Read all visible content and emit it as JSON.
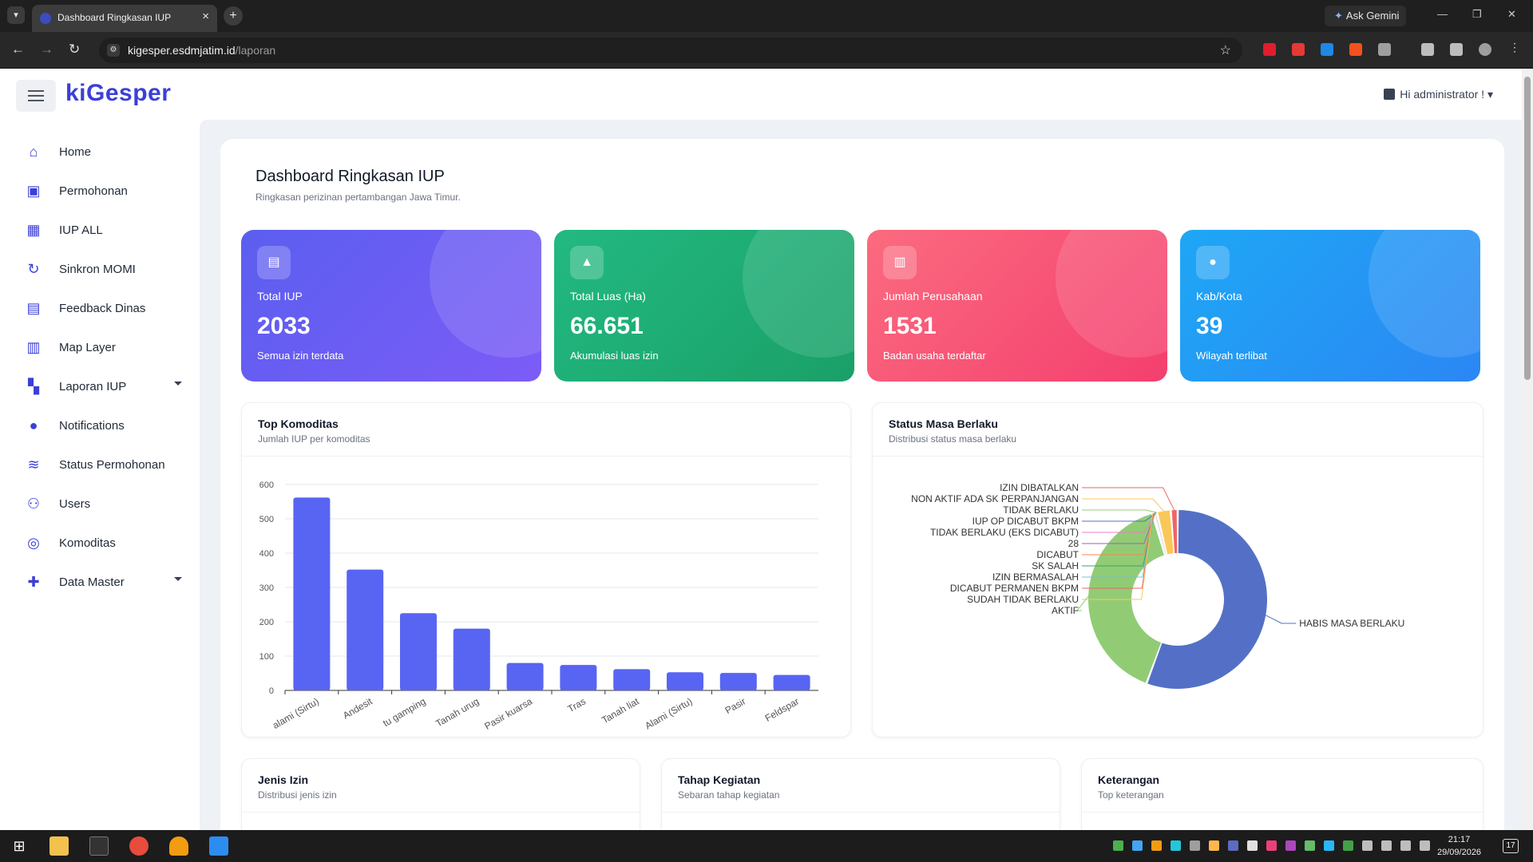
{
  "browser": {
    "tab_title": "Dashboard Ringkasan IUP",
    "url_host": "kigesper.esdmjatim.id",
    "url_path": "/laporan",
    "gemini_label": "Ask Gemini"
  },
  "app": {
    "logo_text": "kiGesper",
    "user_label": "Hi administrator !"
  },
  "sidebar": {
    "items": [
      {
        "label": "Home",
        "icon": "home-icon"
      },
      {
        "label": "Permohonan",
        "icon": "briefcase-icon"
      },
      {
        "label": "IUP ALL",
        "icon": "table-icon"
      },
      {
        "label": "Sinkron MOMI",
        "icon": "sync-icon"
      },
      {
        "label": "Feedback Dinas",
        "icon": "clipboard-user-icon"
      },
      {
        "label": "Map Layer",
        "icon": "map-icon"
      },
      {
        "label": "Laporan IUP",
        "icon": "dashboard-icon"
      },
      {
        "label": "Notifications",
        "icon": "bell-icon"
      },
      {
        "label": "Status Permohonan",
        "icon": "router-icon"
      },
      {
        "label": "Users",
        "icon": "users-icon"
      },
      {
        "label": "Komoditas",
        "icon": "circles-icon"
      },
      {
        "label": "Data Master",
        "icon": "puzzle-icon"
      }
    ]
  },
  "header": {
    "title": "Dashboard Ringkasan IUP",
    "subtitle": "Ringkasan perizinan pertambangan Jawa Timur."
  },
  "stats": [
    {
      "label": "Total IUP",
      "value": "2033",
      "note": "Semua izin terdata",
      "icon": "clipboard-icon",
      "color_from": "#5b5ef0",
      "color_to": "#7c5cf6"
    },
    {
      "label": "Total Luas (Ha)",
      "value": "66.651",
      "note": "Akumulasi luas izin",
      "icon": "mountain-icon",
      "color_from": "#22b981",
      "color_to": "#1aa068"
    },
    {
      "label": "Jumlah Perusahaan",
      "value": "1531",
      "note": "Badan usaha terdaftar",
      "icon": "building-icon",
      "color_from": "#fb6b7f",
      "color_to": "#f43f6e"
    },
    {
      "label": "Kab/Kota",
      "value": "39",
      "note": "Wilayah terlibat",
      "icon": "location-pin-icon",
      "color_from": "#1ea7f5",
      "color_to": "#2b87f4"
    }
  ],
  "panels": {
    "top_komoditas": {
      "title": "Top Komoditas",
      "subtitle": "Jumlah IUP per komoditas"
    },
    "status_masa": {
      "title": "Status Masa Berlaku",
      "subtitle": "Distribusi status masa berlaku"
    },
    "jenis_izin": {
      "title": "Jenis Izin",
      "subtitle": "Distribusi jenis izin"
    },
    "tahap_kegiatan": {
      "title": "Tahap Kegiatan",
      "subtitle": "Sebaran tahap kegiatan"
    },
    "keterangan": {
      "title": "Keterangan",
      "subtitle": "Top keterangan"
    }
  },
  "chart_data": [
    {
      "type": "bar",
      "categories": [
        "alami (Sirtu)",
        "Andesit",
        "tu gamping",
        "Tanah urug",
        "Pasir kuarsa",
        "Tras",
        "Tanah liat",
        "Alami (Sirtu)",
        "Pasir",
        "Feldspar"
      ],
      "values": [
        562,
        352,
        225,
        180,
        80,
        74,
        62,
        53,
        51,
        45
      ],
      "ylim": [
        0,
        600
      ],
      "yticks": [
        0,
        100,
        200,
        300,
        400,
        500,
        600
      ],
      "color": "#5865f2",
      "grid": true
    },
    {
      "type": "pie",
      "donut": true,
      "labels": [
        "HABIS MASA BERLAKU",
        "AKTIF",
        "SUDAH TIDAK BERLAKU",
        "DICABUT PERMANEN BKPM",
        "IZIN BERMASALAH",
        "SK SALAH",
        "DICABUT",
        "28",
        "TIDAK BERLAKU (EKS DICABUT)",
        "IUP OP DICABUT BKPM",
        "TIDAK BERLAKU",
        "NON AKTIF ADA SK PERPANJANGAN",
        "IZIN DIBATALKAN"
      ],
      "values": [
        1120,
        800,
        2,
        2,
        2,
        2,
        2,
        1,
        2,
        2,
        2,
        50,
        25
      ],
      "colors": [
        "#5470c6",
        "#91cc75",
        "#fac858",
        "#ee6666",
        "#73c0de",
        "#3ba272",
        "#fc8452",
        "#9a60b4",
        "#ea7ccc",
        "#5470c6",
        "#91cc75",
        "#fac858",
        "#ee6666"
      ]
    }
  ],
  "taskbar": {
    "time": "21:17",
    "date": "29/09/2026",
    "notif_count": "17"
  }
}
